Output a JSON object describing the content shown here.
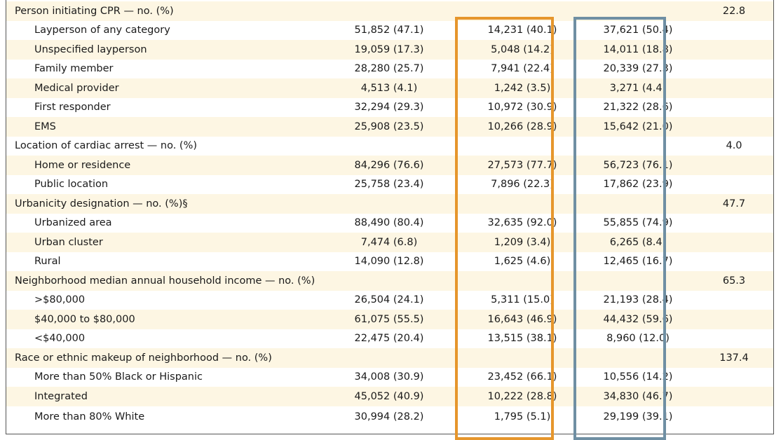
{
  "colors": {
    "row_shade": "#fdf6e3",
    "highlight_orange": "#e6962c",
    "highlight_steel": "#6f8fa3"
  },
  "rows": [
    {
      "label": "Person initiating CPR — no. (%)",
      "c1": "",
      "c2": "",
      "c3": "",
      "c4": "22.8",
      "header": true
    },
    {
      "label": "Layperson of any category",
      "c1": "51,852 (47.1)",
      "c2": "14,231 (40.1)",
      "c3": "37,621 (50.4)",
      "c4": ""
    },
    {
      "label": "Unspecified layperson",
      "c1": "19,059 (17.3)",
      "c2": "5,048 (14.2)",
      "c3": "14,011 (18.8)",
      "c4": ""
    },
    {
      "label": "Family member",
      "c1": "28,280 (25.7)",
      "c2": "7,941 (22.4)",
      "c3": "20,339 (27.3)",
      "c4": ""
    },
    {
      "label": "Medical provider",
      "c1": "4,513 (4.1)",
      "c2": "1,242 (3.5)",
      "c3": "3,271 (4.4)",
      "c4": ""
    },
    {
      "label": "First responder",
      "c1": "32,294 (29.3)",
      "c2": "10,972 (30.9)",
      "c3": "21,322 (28.6)",
      "c4": ""
    },
    {
      "label": "EMS",
      "c1": "25,908 (23.5)",
      "c2": "10,266 (28.9)",
      "c3": "15,642 (21.0)",
      "c4": ""
    },
    {
      "label": "Location of cardiac arrest — no. (%)",
      "c1": "",
      "c2": "",
      "c3": "",
      "c4": "4.0",
      "header": true
    },
    {
      "label": "Home or residence",
      "c1": "84,296 (76.6)",
      "c2": "27,573 (77.7)",
      "c3": "56,723 (76.1)",
      "c4": ""
    },
    {
      "label": "Public location",
      "c1": "25,758 (23.4)",
      "c2": "7,896 (22.3)",
      "c3": "17,862 (23.9)",
      "c4": ""
    },
    {
      "label": "Urbanicity designation — no. (%)§",
      "c1": "",
      "c2": "",
      "c3": "",
      "c4": "47.7",
      "header": true
    },
    {
      "label": "Urbanized area",
      "c1": "88,490 (80.4)",
      "c2": "32,635 (92.0)",
      "c3": "55,855 (74.9)",
      "c4": ""
    },
    {
      "label": "Urban cluster",
      "c1": "7,474 (6.8)",
      "c2": "1,209 (3.4)",
      "c3": "6,265 (8.4)",
      "c4": ""
    },
    {
      "label": "Rural",
      "c1": "14,090 (12.8)",
      "c2": "1,625 (4.6)",
      "c3": "12,465 (16.7)",
      "c4": ""
    },
    {
      "label": "Neighborhood median annual household income — no. (%)",
      "c1": "",
      "c2": "",
      "c3": "",
      "c4": "65.3",
      "header": true
    },
    {
      "label": ">$80,000",
      "c1": "26,504 (24.1)",
      "c2": "5,311 (15.0)",
      "c3": "21,193 (28.4)",
      "c4": ""
    },
    {
      "label": "$40,000 to $80,000",
      "c1": "61,075 (55.5)",
      "c2": "16,643 (46.9)",
      "c3": "44,432 (59.6)",
      "c4": ""
    },
    {
      "label": "<$40,000",
      "c1": "22,475 (20.4)",
      "c2": "13,515 (38.1)",
      "c3": "8,960 (12.0)",
      "c4": ""
    },
    {
      "label": "Race or ethnic makeup of neighborhood — no. (%)",
      "c1": "",
      "c2": "",
      "c3": "",
      "c4": "137.4",
      "header": true
    },
    {
      "label": "More than 50% Black or Hispanic",
      "c1": "34,008 (30.9)",
      "c2": "23,452 (66.1)",
      "c3": "10,556 (14.2)",
      "c4": ""
    },
    {
      "label": "Integrated",
      "c1": "45,052 (40.9)",
      "c2": "10,222 (28.8)",
      "c3": "34,830 (46.7)",
      "c4": ""
    },
    {
      "label": "More than 80% White",
      "c1": "30,994 (28.2)",
      "c2": "1,795 (5.1)",
      "c3": "29,199 (39.1)",
      "c4": ""
    }
  ]
}
